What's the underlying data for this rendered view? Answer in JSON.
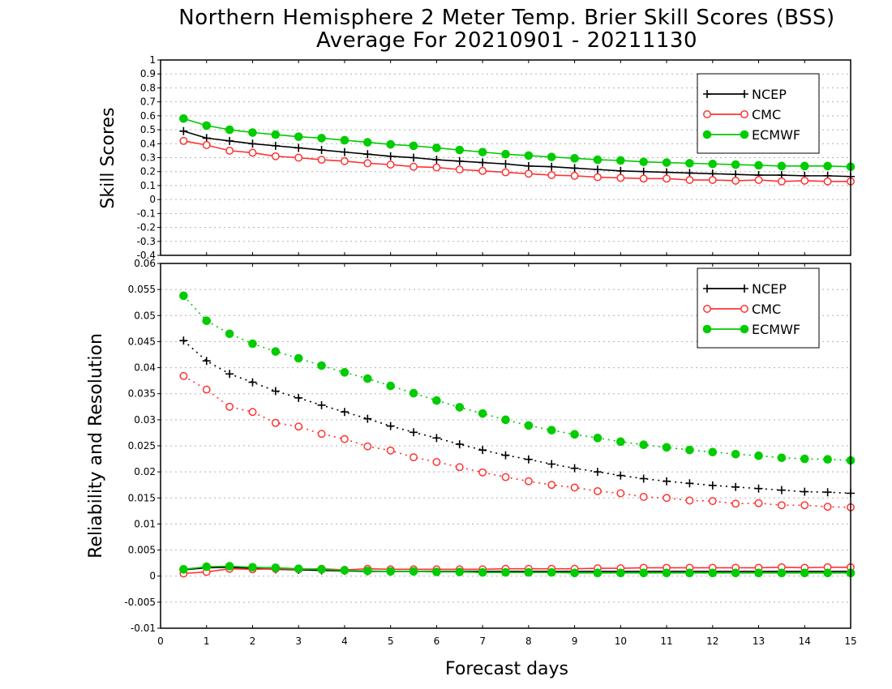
{
  "title_line1": "Northern Hemisphere 2 Meter Temp. Brier Skill Scores (BSS)",
  "title_line2": "Average For 20210901 - 20211130",
  "x_axis": {
    "label": "Forecast days",
    "ticks": [
      "0",
      "1",
      "2",
      "3",
      "4",
      "5",
      "6",
      "7",
      "8",
      "9",
      "10",
      "11",
      "12",
      "13",
      "14",
      "15"
    ]
  },
  "chart_data": [
    {
      "type": "line",
      "ylabel": "Skill Scores",
      "xlabel": "Forecast days",
      "xlim": [
        0,
        15
      ],
      "ylim": [
        -0.4,
        1
      ],
      "yticks": [
        "-0.4",
        "-0.3",
        "-0.2",
        "-0.1",
        "0",
        "0.1",
        "0.2",
        "0.3",
        "0.4",
        "0.5",
        "0.6",
        "0.7",
        "0.8",
        "0.9",
        "1"
      ],
      "grid": true,
      "legend_position": "top-right",
      "x": [
        0.5,
        1,
        1.5,
        2,
        2.5,
        3,
        3.5,
        4,
        4.5,
        5,
        5.5,
        6,
        6.5,
        7,
        7.5,
        8,
        8.5,
        9,
        9.5,
        10,
        10.5,
        11,
        11.5,
        12,
        12.5,
        13,
        13.5,
        14,
        14.5,
        15
      ],
      "series": [
        {
          "name": "NCEP",
          "color": "#000000",
          "marker": "plus",
          "line": "solid",
          "values": [
            0.49,
            0.44,
            0.42,
            0.4,
            0.385,
            0.37,
            0.355,
            0.34,
            0.325,
            0.31,
            0.3,
            0.285,
            0.275,
            0.265,
            0.255,
            0.24,
            0.235,
            0.225,
            0.215,
            0.205,
            0.2,
            0.195,
            0.19,
            0.185,
            0.18,
            0.175,
            0.175,
            0.17,
            0.17,
            0.165
          ]
        },
        {
          "name": "CMC",
          "color": "#ff3333",
          "marker": "circle-open",
          "line": "solid",
          "values": [
            0.42,
            0.39,
            0.35,
            0.335,
            0.31,
            0.3,
            0.285,
            0.275,
            0.26,
            0.25,
            0.235,
            0.23,
            0.215,
            0.205,
            0.195,
            0.185,
            0.175,
            0.17,
            0.16,
            0.155,
            0.15,
            0.15,
            0.14,
            0.14,
            0.135,
            0.14,
            0.13,
            0.135,
            0.13,
            0.13
          ]
        },
        {
          "name": "ECMWF",
          "color": "#00cc00",
          "marker": "circle-filled",
          "line": "solid",
          "values": [
            0.58,
            0.53,
            0.5,
            0.48,
            0.465,
            0.45,
            0.44,
            0.425,
            0.41,
            0.395,
            0.385,
            0.37,
            0.355,
            0.34,
            0.325,
            0.315,
            0.305,
            0.295,
            0.285,
            0.28,
            0.27,
            0.265,
            0.26,
            0.255,
            0.25,
            0.245,
            0.24,
            0.24,
            0.24,
            0.235
          ]
        }
      ]
    },
    {
      "type": "line",
      "ylabel": "Reliability and Resolution",
      "xlabel": "Forecast days",
      "xlim": [
        0,
        15
      ],
      "ylim": [
        -0.01,
        0.06
      ],
      "yticks": [
        "-0.01",
        "-0.005",
        "0",
        "0.005",
        "0.01",
        "0.015",
        "0.02",
        "0.025",
        "0.03",
        "0.035",
        "0.04",
        "0.045",
        "0.05",
        "0.055",
        "0.06"
      ],
      "grid": true,
      "legend_position": "top-right",
      "x": [
        0.5,
        1,
        1.5,
        2,
        2.5,
        3,
        3.5,
        4,
        4.5,
        5,
        5.5,
        6,
        6.5,
        7,
        7.5,
        8,
        8.5,
        9,
        9.5,
        10,
        10.5,
        11,
        11.5,
        12,
        12.5,
        13,
        13.5,
        14,
        14.5,
        15
      ],
      "series": [
        {
          "name": "NCEP",
          "group": "resolution",
          "color": "#000000",
          "marker": "plus",
          "line": "dotted",
          "values": [
            0.0452,
            0.0413,
            0.0388,
            0.0372,
            0.0355,
            0.0342,
            0.0328,
            0.0315,
            0.0302,
            0.0288,
            0.0276,
            0.0265,
            0.0253,
            0.0242,
            0.0232,
            0.0224,
            0.0215,
            0.0207,
            0.02,
            0.0193,
            0.0187,
            0.0182,
            0.0178,
            0.0174,
            0.0171,
            0.0168,
            0.0165,
            0.0162,
            0.0161,
            0.0159
          ]
        },
        {
          "name": "CMC",
          "group": "resolution",
          "color": "#ff3333",
          "marker": "circle-open",
          "line": "dotted",
          "values": [
            0.0384,
            0.0358,
            0.0325,
            0.0315,
            0.0294,
            0.0287,
            0.0273,
            0.0263,
            0.0249,
            0.0241,
            0.0228,
            0.0219,
            0.0209,
            0.0199,
            0.019,
            0.0182,
            0.0175,
            0.017,
            0.0163,
            0.0159,
            0.0152,
            0.015,
            0.0145,
            0.0144,
            0.0139,
            0.014,
            0.0136,
            0.0136,
            0.0133,
            0.0132
          ]
        },
        {
          "name": "ECMWF",
          "group": "resolution",
          "color": "#00cc00",
          "marker": "circle-filled",
          "line": "dotted",
          "values": [
            0.0538,
            0.049,
            0.0465,
            0.0446,
            0.0431,
            0.0418,
            0.0404,
            0.0391,
            0.0379,
            0.0365,
            0.0351,
            0.0337,
            0.0324,
            0.0312,
            0.03,
            0.0289,
            0.028,
            0.0272,
            0.0265,
            0.0258,
            0.0252,
            0.0247,
            0.0242,
            0.0238,
            0.0234,
            0.0231,
            0.0227,
            0.0225,
            0.0224,
            0.0222
          ]
        },
        {
          "name": "NCEP",
          "group": "reliability",
          "color": "#000000",
          "marker": "plus",
          "line": "solid",
          "values": [
            0.0012,
            0.0016,
            0.0017,
            0.0015,
            0.0013,
            0.0012,
            0.0011,
            0.001,
            0.0009,
            0.0009,
            0.0009,
            0.0009,
            0.0009,
            0.0009,
            0.0009,
            0.0009,
            0.0009,
            0.0009,
            0.0009,
            0.0009,
            0.0009,
            0.0009,
            0.0009,
            0.0009,
            0.0009,
            0.0009,
            0.0009,
            0.0009,
            0.0009,
            0.0009
          ]
        },
        {
          "name": "CMC",
          "group": "reliability",
          "color": "#ff3333",
          "marker": "circle-open",
          "line": "solid",
          "values": [
            0.0005,
            0.0008,
            0.0014,
            0.0013,
            0.0014,
            0.0013,
            0.0014,
            0.0012,
            0.0014,
            0.0013,
            0.0013,
            0.0013,
            0.0013,
            0.0013,
            0.0014,
            0.0014,
            0.0014,
            0.0014,
            0.0015,
            0.0015,
            0.0016,
            0.0016,
            0.0016,
            0.0016,
            0.0016,
            0.0016,
            0.0017,
            0.0016,
            0.0017,
            0.0017
          ]
        },
        {
          "name": "ECMWF",
          "group": "reliability",
          "color": "#00cc00",
          "marker": "circle-filled",
          "line": "solid",
          "values": [
            0.0013,
            0.0018,
            0.0019,
            0.0017,
            0.0016,
            0.0014,
            0.0013,
            0.0011,
            0.001,
            0.0009,
            0.0009,
            0.0008,
            0.0008,
            0.0007,
            0.0007,
            0.0007,
            0.0007,
            0.0006,
            0.0006,
            0.0006,
            0.0006,
            0.0006,
            0.0006,
            0.0006,
            0.0006,
            0.0006,
            0.0006,
            0.0006,
            0.0006,
            0.0006
          ]
        }
      ]
    }
  ]
}
